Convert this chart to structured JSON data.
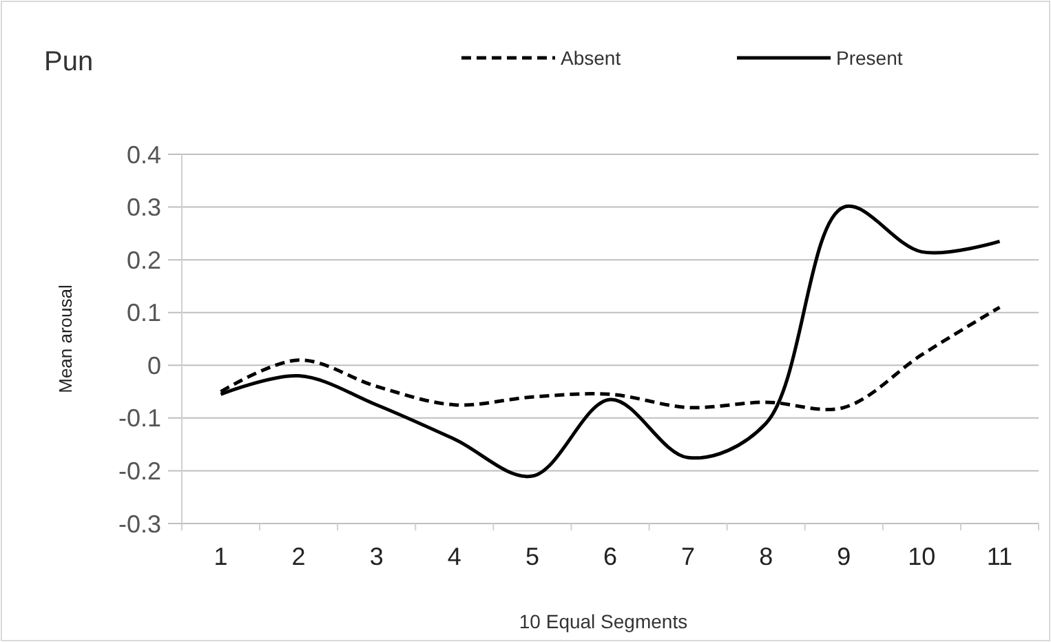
{
  "chart_data": {
    "type": "line",
    "title": "Pun",
    "xlabel": "10 Equal Segments",
    "ylabel": "Mean arousal",
    "categories": [
      "1",
      "2",
      "3",
      "4",
      "5",
      "6",
      "7",
      "8",
      "9",
      "10",
      "11"
    ],
    "ylim": [
      -0.3,
      0.4
    ],
    "yticks": [
      {
        "value": -0.3,
        "label": "-0.3"
      },
      {
        "value": -0.2,
        "label": "-0.2"
      },
      {
        "value": -0.1,
        "label": "-0.1"
      },
      0,
      {
        "value": 0.1,
        "label": "0.1"
      },
      {
        "value": 0.2,
        "label": "0.2"
      },
      {
        "value": 0.3,
        "label": "0.3"
      },
      {
        "value": 0.4,
        "label": "0.4"
      }
    ],
    "grid": "y",
    "legend": "top right",
    "marker": "none",
    "series": [
      {
        "name": "Absent",
        "color": "#000000",
        "line_style": "dashed",
        "values": [
          -0.05,
          0.01,
          -0.04,
          -0.075,
          -0.06,
          -0.055,
          -0.08,
          -0.07,
          -0.08,
          0.02,
          0.11
        ]
      },
      {
        "name": "Present",
        "color": "#000000",
        "line_style": "solid",
        "values": [
          -0.055,
          -0.02,
          -0.075,
          -0.14,
          -0.21,
          -0.065,
          -0.175,
          -0.11,
          0.3,
          0.215,
          0.235
        ]
      }
    ]
  }
}
